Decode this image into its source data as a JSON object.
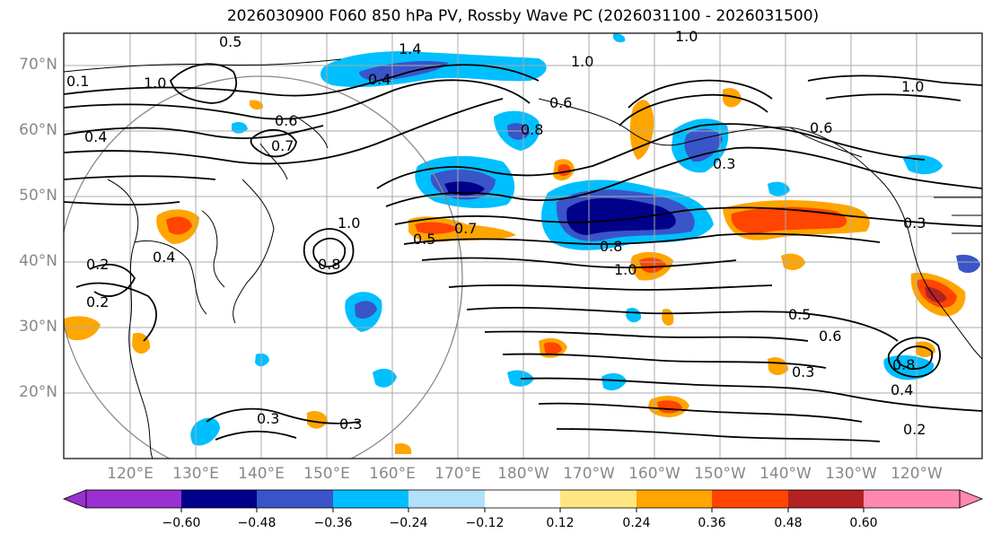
{
  "title": "2026030900 F060 850 hPa PV, Rossby Wave PC (2026031100 - 2026031500)",
  "lat_ticks": [
    "70°N",
    "60°N",
    "50°N",
    "40°N",
    "30°N",
    "20°N"
  ],
  "lon_ticks": [
    "120°E",
    "130°E",
    "140°E",
    "150°E",
    "160°E",
    "170°E",
    "180°W",
    "170°W",
    "160°W",
    "150°W",
    "140°W",
    "130°W",
    "120°W"
  ],
  "colorbar": {
    "ticks": [
      "−0.60",
      "−0.48",
      "−0.36",
      "−0.24",
      "−0.12",
      "0.12",
      "0.24",
      "0.36",
      "0.48",
      "0.60"
    ],
    "colors": [
      "#9b30d0",
      "#00008b",
      "#3a55c8",
      "#00bfff",
      "#b0e0fa",
      "#ffffff",
      "#ffe680",
      "#ffa500",
      "#ff4500",
      "#b22222",
      "#ff88b0"
    ]
  },
  "contour_labels": [
    "0.5",
    "1.4",
    "1.0",
    "1.0",
    "0.4",
    "0.6",
    "0.7",
    "0.8",
    "0.6",
    "0.3",
    "0.2",
    "0.4",
    "0.2",
    "0.7",
    "0.5",
    "0.8",
    "1.0",
    "0.8",
    "1.0",
    "0.3",
    "0.5",
    "0.6",
    "0.3",
    "0.8",
    "0.4",
    "0.2",
    "0.3",
    "0.3",
    "1.0",
    "0.6",
    "1.0",
    "0.1",
    "0.4"
  ],
  "colors": {
    "map_border": "#000000",
    "grid": "#aaaaaa",
    "axis_label": "#888888"
  }
}
